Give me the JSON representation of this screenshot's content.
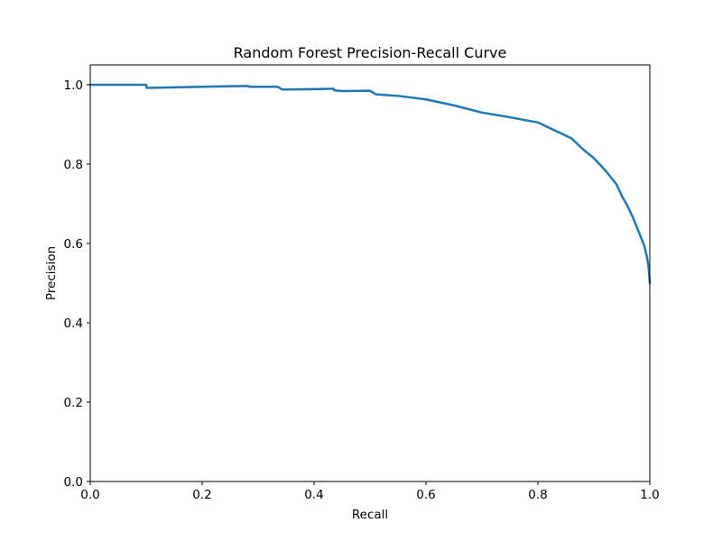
{
  "chart_data": {
    "type": "line",
    "title": "Random Forest Precision-Recall Curve",
    "xlabel": "Recall",
    "ylabel": "Precision",
    "xlim": [
      0.0,
      1.0
    ],
    "ylim": [
      0.0,
      1.05
    ],
    "x_ticks": [
      0.0,
      0.2,
      0.4,
      0.6,
      0.8,
      1.0
    ],
    "x_tick_labels": [
      "0.0",
      "0.2",
      "0.4",
      "0.6",
      "0.8",
      "1.0"
    ],
    "y_ticks": [
      0.0,
      0.2,
      0.4,
      0.6,
      0.8,
      1.0
    ],
    "y_tick_labels": [
      "0.0",
      "0.2",
      "0.4",
      "0.6",
      "0.8",
      "1.0"
    ],
    "grid": false,
    "legend": "none",
    "series": [
      {
        "color": "#1f77b4",
        "x": [
          0.0,
          0.1,
          0.101,
          0.2,
          0.283,
          0.284,
          0.335,
          0.343,
          0.35,
          0.4,
          0.435,
          0.436,
          0.45,
          0.5,
          0.51,
          0.55,
          0.6,
          0.65,
          0.7,
          0.75,
          0.8,
          0.83,
          0.86,
          0.88,
          0.9,
          0.92,
          0.94,
          0.95,
          0.96,
          0.97,
          0.98,
          0.99,
          0.995,
          0.998,
          1.0
        ],
        "y": [
          1.0,
          1.0,
          0.992,
          0.995,
          0.997,
          0.995,
          0.995,
          0.988,
          0.988,
          0.989,
          0.99,
          0.986,
          0.984,
          0.985,
          0.976,
          0.972,
          0.963,
          0.948,
          0.93,
          0.918,
          0.905,
          0.885,
          0.865,
          0.838,
          0.815,
          0.785,
          0.75,
          0.72,
          0.695,
          0.665,
          0.63,
          0.595,
          0.565,
          0.54,
          0.5
        ]
      }
    ]
  }
}
